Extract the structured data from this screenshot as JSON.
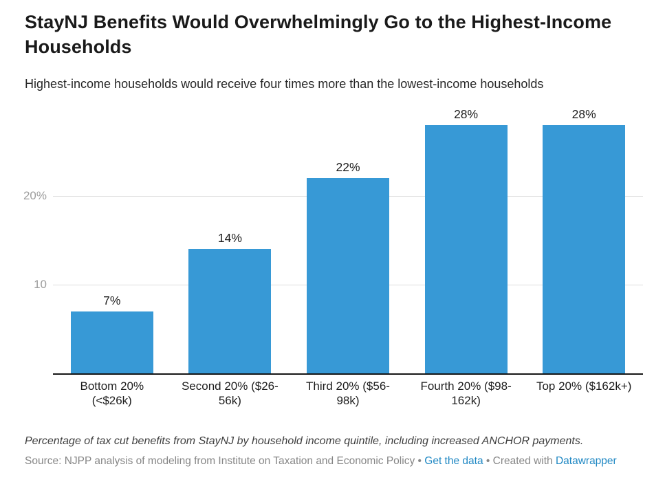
{
  "header": {
    "title": "StayNJ Benefits Would Overwhelmingly Go to the Highest-Income Households",
    "subtitle": "Highest-income households would receive four times more than the lowest-income households"
  },
  "chart_data": {
    "type": "bar",
    "title": "StayNJ Benefits Would Overwhelmingly Go to the Highest-Income Households",
    "subtitle": "Highest-income households would receive four times more than the lowest-income households",
    "categories": [
      "Bottom 20% (<$26k)",
      "Second 20% ($26-56k)",
      "Third 20% ($56-98k)",
      "Fourth 20% ($98-162k)",
      "Top 20% ($162k+)"
    ],
    "values": [
      7,
      14,
      22,
      28,
      28
    ],
    "value_labels": [
      "7%",
      "14%",
      "22%",
      "28%",
      "28%"
    ],
    "xlabel": "",
    "ylabel": "",
    "ylim": [
      0,
      30
    ],
    "yticks": [
      {
        "value": 20,
        "label": "20%"
      },
      {
        "value": 10,
        "label": "10"
      }
    ],
    "grid": "horizontal",
    "legend": "none",
    "bar_color": "#3799d6"
  },
  "footer": {
    "notes": "Percentage of tax cut benefits from StayNJ by household income quintile, including increased ANCHOR payments.",
    "source_prefix": "Source: NJPP analysis of modeling from Institute on Taxation and Economic Policy",
    "separator": "•",
    "get_data_link": "Get the data",
    "created_with": "Created with",
    "datawrapper_link": "Datawrapper"
  },
  "colors": {
    "bar": "#3799d6",
    "link": "#1e87c3",
    "gridline": "#dddddd",
    "axis_text": "#9d9d9d",
    "baseline": "#151515"
  }
}
